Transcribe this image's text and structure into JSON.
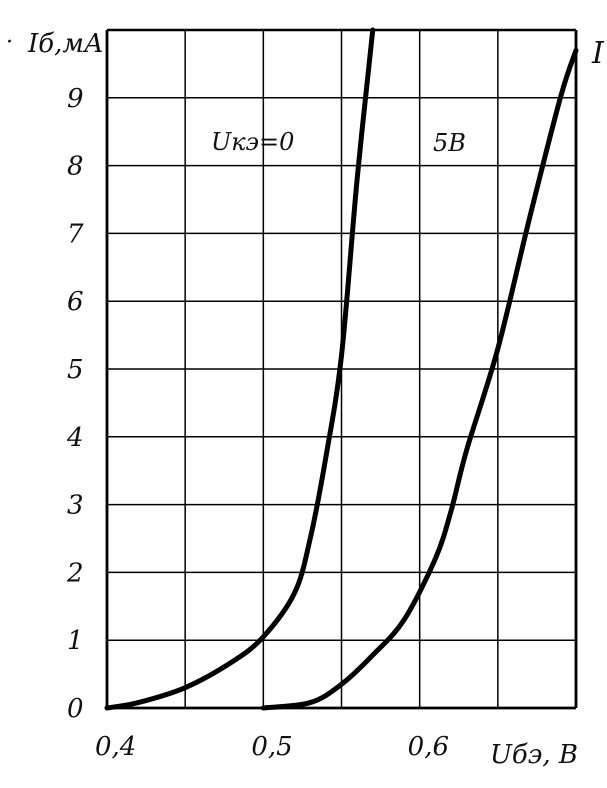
{
  "chart_data": {
    "type": "line",
    "title": "",
    "xlabel": "Uбэ, В",
    "ylabel": "Iб,мА",
    "xlim": [
      0.4,
      0.7
    ],
    "ylim": [
      0,
      10
    ],
    "x_ticks": [
      {
        "value": 0.4,
        "label": "0,4"
      },
      {
        "value": 0.5,
        "label": "0,5"
      },
      {
        "value": 0.6,
        "label": "0,6"
      }
    ],
    "y_ticks": [
      {
        "value": 0,
        "label": "0"
      },
      {
        "value": 1,
        "label": "1"
      },
      {
        "value": 2,
        "label": "2"
      },
      {
        "value": 3,
        "label": "3"
      },
      {
        "value": 4,
        "label": "4"
      },
      {
        "value": 5,
        "label": "5"
      },
      {
        "value": 6,
        "label": "6"
      },
      {
        "value": 7,
        "label": "7"
      },
      {
        "value": 8,
        "label": "8"
      },
      {
        "value": 9,
        "label": "9"
      }
    ],
    "grid": true,
    "legend": "none",
    "series": [
      {
        "name": "Uкэ=0",
        "color": "#000000",
        "points": [
          [
            0.4,
            0.0
          ],
          [
            0.42,
            0.08
          ],
          [
            0.45,
            0.3
          ],
          [
            0.48,
            0.68
          ],
          [
            0.5,
            1.05
          ],
          [
            0.52,
            1.7
          ],
          [
            0.53,
            2.5
          ],
          [
            0.54,
            3.7
          ],
          [
            0.55,
            5.2
          ],
          [
            0.56,
            7.8
          ],
          [
            0.57,
            10.0
          ]
        ]
      },
      {
        "name": "5В",
        "color": "#000000",
        "points": [
          [
            0.5,
            0.0
          ],
          [
            0.53,
            0.08
          ],
          [
            0.55,
            0.35
          ],
          [
            0.57,
            0.78
          ],
          [
            0.59,
            1.3
          ],
          [
            0.61,
            2.2
          ],
          [
            0.62,
            2.9
          ],
          [
            0.63,
            3.8
          ],
          [
            0.65,
            5.3
          ],
          [
            0.67,
            7.2
          ],
          [
            0.69,
            9.0
          ],
          [
            0.7,
            9.7
          ]
        ]
      }
    ],
    "annotations": [
      "Uкэ=0",
      "5В",
      "I"
    ]
  }
}
